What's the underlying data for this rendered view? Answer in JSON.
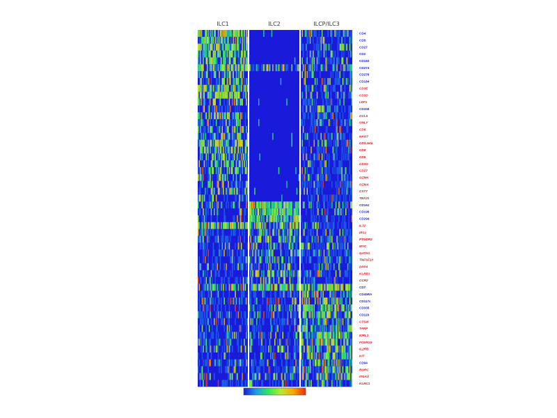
{
  "chart_data": {
    "type": "heatmap",
    "title": "",
    "columns": [
      "ILC1",
      "ILC2",
      "ILCP/ILC3"
    ],
    "rows": [
      {
        "label": "CD4",
        "color": "#1a1adb",
        "mean": [
          0.42,
          0.0,
          0.12
        ]
      },
      {
        "label": "CD5",
        "color": "#1a1adb",
        "mean": [
          0.4,
          0.0,
          0.1
        ]
      },
      {
        "label": "CD27",
        "color": "#1a1adb",
        "mean": [
          0.45,
          0.0,
          0.12
        ]
      },
      {
        "label": "CD2",
        "color": "#1a1adb",
        "mean": [
          0.38,
          0.0,
          0.1
        ]
      },
      {
        "label": "CD183",
        "color": "#1a1adb",
        "mean": [
          0.3,
          0.0,
          0.08
        ]
      },
      {
        "label": "CD274",
        "color": "#1a1adb",
        "mean": [
          0.35,
          0.2,
          0.15
        ]
      },
      {
        "label": "CD278",
        "color": "#1a1adb",
        "mean": [
          0.2,
          0.0,
          0.06
        ]
      },
      {
        "label": "CD184",
        "color": "#1a1adb",
        "mean": [
          0.25,
          0.0,
          0.08
        ]
      },
      {
        "label": "CD3E",
        "color": "#d8141c",
        "mean": [
          0.35,
          0.0,
          0.1
        ]
      },
      {
        "label": "CD3D",
        "color": "#d8141c",
        "mean": [
          0.4,
          0.0,
          0.12
        ]
      },
      {
        "label": "LEF1",
        "color": "#d8141c",
        "mean": [
          0.22,
          0.0,
          0.08
        ]
      },
      {
        "label": "CD336",
        "color": "#1a1adb",
        "mean": [
          0.05,
          0.0,
          0.08
        ]
      },
      {
        "label": "CCL5",
        "color": "#d8141c",
        "mean": [
          0.18,
          0.0,
          0.05
        ]
      },
      {
        "label": "GNLY",
        "color": "#d8141c",
        "mean": [
          0.12,
          0.0,
          0.04
        ]
      },
      {
        "label": "CD6",
        "color": "#d8141c",
        "mean": [
          0.28,
          0.0,
          0.06
        ]
      },
      {
        "label": "NKG7",
        "color": "#d8141c",
        "mean": [
          0.15,
          0.0,
          0.05
        ]
      },
      {
        "label": "CD3 zeta",
        "color": "#d8141c",
        "mean": [
          0.32,
          0.0,
          0.1
        ]
      },
      {
        "label": "CD8",
        "color": "#d8141c",
        "mean": [
          0.24,
          0.0,
          0.04
        ]
      },
      {
        "label": "CD5",
        "color": "#d8141c",
        "mean": [
          0.22,
          0.0,
          0.05
        ]
      },
      {
        "label": "CD3G",
        "color": "#d8141c",
        "mean": [
          0.26,
          0.0,
          0.06
        ]
      },
      {
        "label": "CD27",
        "color": "#d8141c",
        "mean": [
          0.2,
          0.0,
          0.05
        ]
      },
      {
        "label": "GZMK",
        "color": "#d8141c",
        "mean": [
          0.18,
          0.0,
          0.04
        ]
      },
      {
        "label": "GZMA",
        "color": "#d8141c",
        "mean": [
          0.15,
          0.0,
          0.04
        ]
      },
      {
        "label": "CST7",
        "color": "#d8141c",
        "mean": [
          0.14,
          0.0,
          0.04
        ]
      },
      {
        "label": "TBX21",
        "color": "#d8141c",
        "mean": [
          0.1,
          0.0,
          0.04
        ]
      },
      {
        "label": "CD161",
        "color": "#1a1adb",
        "mean": [
          0.08,
          0.4,
          0.1
        ]
      },
      {
        "label": "CD196",
        "color": "#1a1adb",
        "mean": [
          0.06,
          0.45,
          0.12
        ]
      },
      {
        "label": "CD294",
        "color": "#1a1adb",
        "mean": [
          0.05,
          0.4,
          0.06
        ]
      },
      {
        "label": "IL32",
        "color": "#d8141c",
        "mean": [
          0.4,
          0.35,
          0.08
        ]
      },
      {
        "label": "IRS1",
        "color": "#d8141c",
        "mean": [
          0.03,
          0.2,
          0.04
        ]
      },
      {
        "label": "PTGDR2",
        "color": "#d8141c",
        "mean": [
          0.03,
          0.25,
          0.04
        ]
      },
      {
        "label": "MYC",
        "color": "#d8141c",
        "mean": [
          0.05,
          0.18,
          0.05
        ]
      },
      {
        "label": "GATA3",
        "color": "#d8141c",
        "mean": [
          0.08,
          0.22,
          0.05
        ]
      },
      {
        "label": "TNFSF10",
        "color": "#d8141c",
        "mean": [
          0.05,
          0.18,
          0.04
        ]
      },
      {
        "label": "DPP4",
        "color": "#d8141c",
        "mean": [
          0.04,
          0.15,
          0.04
        ]
      },
      {
        "label": "KLRB1",
        "color": "#d8141c",
        "mean": [
          0.06,
          0.2,
          0.08
        ]
      },
      {
        "label": "CCR2",
        "color": "#d8141c",
        "mean": [
          0.03,
          0.12,
          0.04
        ]
      },
      {
        "label": "CD7",
        "color": "#1a1adb",
        "mean": [
          0.3,
          0.35,
          0.4
        ]
      },
      {
        "label": "CD45RA",
        "color": "#1a1adb",
        "mean": [
          0.04,
          0.05,
          0.15
        ]
      },
      {
        "label": "CD117c",
        "color": "#1a1adb",
        "mean": [
          0.05,
          0.08,
          0.3
        ]
      },
      {
        "label": "CD335",
        "color": "#1a1adb",
        "mean": [
          0.06,
          0.1,
          0.35
        ]
      },
      {
        "label": "CD11b",
        "color": "#1a1adb",
        "mean": [
          0.05,
          0.1,
          0.3
        ]
      },
      {
        "label": "CTSW",
        "color": "#d8141c",
        "mean": [
          0.06,
          0.08,
          0.25
        ]
      },
      {
        "label": "TARP",
        "color": "#d8141c",
        "mean": [
          0.04,
          0.06,
          0.25
        ]
      },
      {
        "label": "KIRL1",
        "color": "#d8141c",
        "mean": [
          0.05,
          0.08,
          0.3
        ]
      },
      {
        "label": "FCER1G",
        "color": "#d8141c",
        "mean": [
          0.06,
          0.1,
          0.35
        ]
      },
      {
        "label": "IL2RB",
        "color": "#d8141c",
        "mean": [
          0.05,
          0.1,
          0.3
        ]
      },
      {
        "label": "KIT",
        "color": "#d8141c",
        "mean": [
          0.04,
          0.08,
          0.35
        ]
      },
      {
        "label": "CD94",
        "color": "#1a1adb",
        "mean": [
          0.05,
          0.06,
          0.18
        ]
      },
      {
        "label": "RORC",
        "color": "#d8141c",
        "mean": [
          0.04,
          0.05,
          0.2
        ]
      },
      {
        "label": "ITGAX",
        "color": "#d8141c",
        "mean": [
          0.06,
          0.1,
          0.18
        ]
      },
      {
        "label": "KLRC1",
        "color": "#d8141c",
        "mean": [
          0.04,
          0.05,
          0.15
        ]
      }
    ],
    "color_scale": [
      "#1a1adb",
      "#1d9be8",
      "#2fe85a",
      "#b9e830",
      "#f7a800",
      "#ef2b10"
    ],
    "legend_position": "bottom-center"
  }
}
